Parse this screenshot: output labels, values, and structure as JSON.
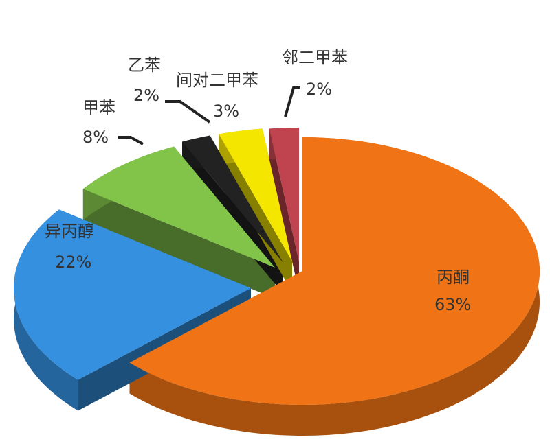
{
  "chart_data": {
    "type": "pie",
    "style": "3d-exploded",
    "title": "",
    "legend": "none",
    "slices": [
      {
        "label": "丙酮",
        "value": 63,
        "value_label": "63%",
        "color": "#f07415"
      },
      {
        "label": "异丙醇",
        "value": 22,
        "value_label": "22%",
        "color": "#3590e0"
      },
      {
        "label": "甲苯",
        "value": 8,
        "value_label": "8%",
        "color": "#82c44a"
      },
      {
        "label": "乙苯",
        "value": 2,
        "value_label": "2%",
        "color": "#222222"
      },
      {
        "label": "间对二甲苯",
        "value": 3,
        "value_label": "3%",
        "color": "#f5e600"
      },
      {
        "label": "邻二甲苯",
        "value": 2,
        "value_label": "2%",
        "color": "#c0444f"
      }
    ]
  }
}
